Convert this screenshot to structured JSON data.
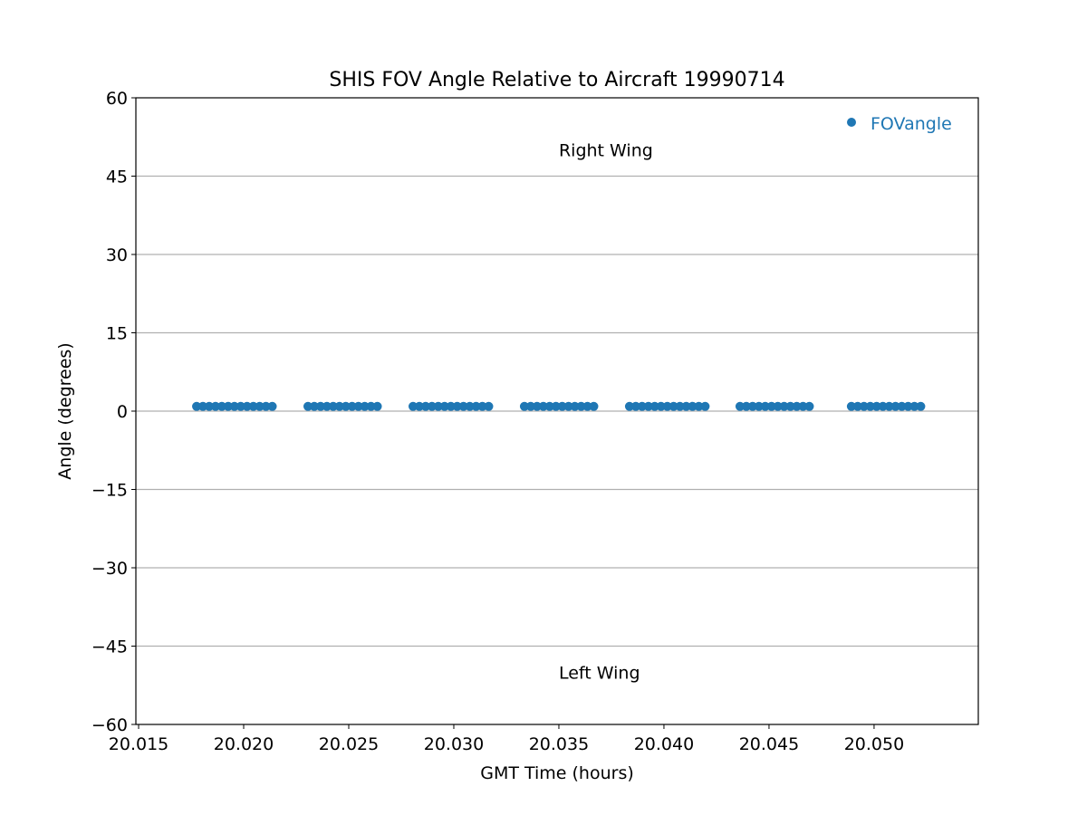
{
  "chart_data": {
    "type": "scatter",
    "title": "SHIS FOV Angle Relative to Aircraft 19990714",
    "xlabel": "GMT Time (hours)",
    "ylabel": "Angle (degrees)",
    "xlim": [
      20.01487,
      20.05496
    ],
    "ylim": [
      -60,
      60
    ],
    "xticks": [
      20.015,
      20.02,
      20.025,
      20.03,
      20.035,
      20.04,
      20.045,
      20.05
    ],
    "xtick_labels": [
      "20.015",
      "20.020",
      "20.025",
      "20.030",
      "20.035",
      "20.040",
      "20.045",
      "20.050"
    ],
    "yticks": [
      -60,
      -45,
      -30,
      -15,
      0,
      15,
      30,
      45,
      60
    ],
    "ytick_labels": [
      "−60",
      "−45",
      "−30",
      "−15",
      "0",
      "15",
      "30",
      "45",
      "60"
    ],
    "grid": "horizontal",
    "legend": {
      "position": "top-right",
      "entries": [
        "FOVangle"
      ]
    },
    "annotations": [
      {
        "text": "Right Wing",
        "x": 20.035,
        "y": 50
      },
      {
        "text": "Left Wing",
        "x": 20.035,
        "y": -50
      }
    ],
    "series": [
      {
        "name": "FOVangle",
        "color": "#1f77b4",
        "y_constant": 0.9,
        "x": [
          20.01776,
          20.01806,
          20.01836,
          20.01866,
          20.01896,
          20.01926,
          20.01956,
          20.01986,
          20.02016,
          20.02046,
          20.02076,
          20.02106,
          20.02136,
          20.02306,
          20.02336,
          20.02366,
          20.02396,
          20.02426,
          20.02456,
          20.02486,
          20.02516,
          20.02546,
          20.02576,
          20.02606,
          20.02636,
          20.02806,
          20.02836,
          20.02866,
          20.02896,
          20.02926,
          20.02956,
          20.02986,
          20.03016,
          20.03046,
          20.03076,
          20.03106,
          20.03136,
          20.03166,
          20.03336,
          20.03366,
          20.03396,
          20.03426,
          20.03456,
          20.03486,
          20.03516,
          20.03546,
          20.03576,
          20.03606,
          20.03636,
          20.03666,
          20.03836,
          20.03866,
          20.03896,
          20.03926,
          20.03956,
          20.03986,
          20.04016,
          20.04046,
          20.04076,
          20.04106,
          20.04136,
          20.04166,
          20.04196,
          20.04362,
          20.04392,
          20.04422,
          20.04452,
          20.04482,
          20.04512,
          20.04542,
          20.04572,
          20.04602,
          20.04632,
          20.04662,
          20.04692,
          20.04892,
          20.04922,
          20.04952,
          20.04982,
          20.05012,
          20.05042,
          20.05072,
          20.05102,
          20.05132,
          20.05162,
          20.05192,
          20.05222
        ]
      }
    ]
  }
}
